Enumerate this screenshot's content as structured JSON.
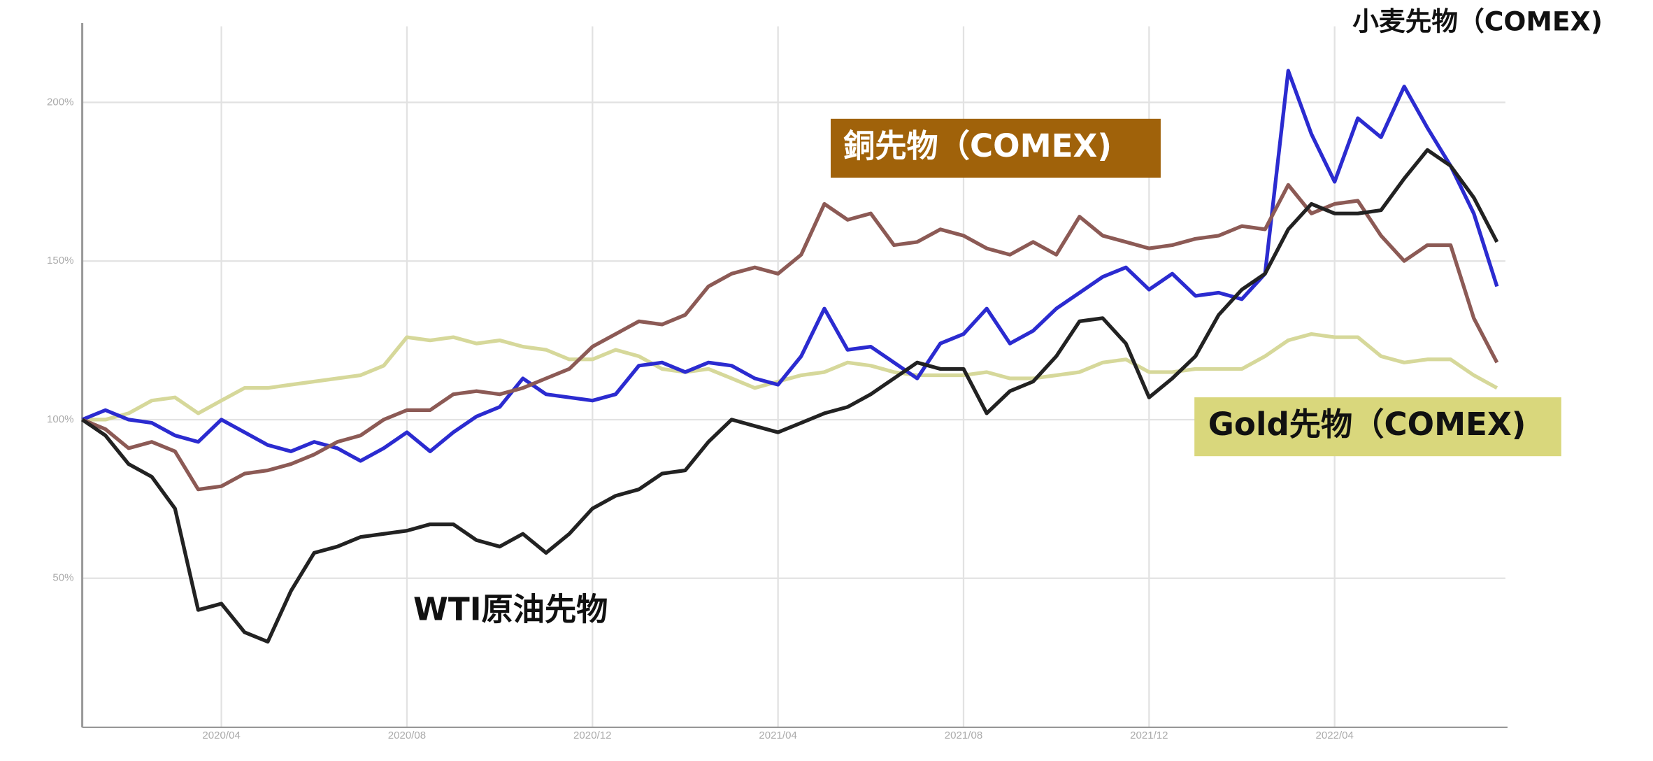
{
  "chart_data": {
    "type": "line",
    "categories": [
      null,
      null,
      null,
      null,
      null,
      null,
      "2020/04",
      null,
      null,
      null,
      null,
      null,
      null,
      null,
      "2020/08",
      null,
      null,
      null,
      null,
      null,
      null,
      null,
      "2020/12",
      null,
      null,
      null,
      null,
      null,
      null,
      null,
      "2021/04",
      null,
      null,
      null,
      null,
      null,
      null,
      null,
      "2021/08",
      null,
      null,
      null,
      null,
      null,
      null,
      null,
      "2021/12",
      null,
      null,
      null,
      null,
      null,
      null,
      null,
      "2022/04",
      null,
      null,
      null,
      null,
      null,
      null,
      null
    ],
    "ylim": [
      3,
      224
    ],
    "yticks": [
      {
        "value": 50,
        "label": "50%"
      },
      {
        "value": 100,
        "label": "100%"
      },
      {
        "value": 150,
        "label": "150%"
      },
      {
        "value": 200,
        "label": "200%"
      }
    ],
    "grid": true,
    "series": [
      {
        "name": "WTI原油先物",
        "color": "#222222",
        "values": [
          100,
          95,
          86,
          82,
          72,
          40,
          42,
          33,
          30,
          46,
          58,
          60,
          63,
          64,
          65,
          67,
          67,
          62,
          60,
          64,
          58,
          64,
          72,
          76,
          78,
          83,
          84,
          93,
          100,
          98,
          96,
          99,
          102,
          104,
          108,
          113,
          118,
          116,
          116,
          102,
          109,
          112,
          120,
          131,
          132,
          124,
          107,
          113,
          120,
          133,
          141,
          146,
          160,
          168,
          165,
          165,
          166,
          176,
          185,
          180,
          170,
          156
        ]
      },
      {
        "name": "銅先物（COMEX)",
        "color": "#8c5a55",
        "label_color": "#a0620a",
        "values": [
          100,
          97,
          91,
          93,
          90,
          78,
          79,
          83,
          84,
          86,
          89,
          93,
          95,
          100,
          103,
          103,
          108,
          109,
          108,
          110,
          113,
          116,
          123,
          127,
          131,
          130,
          133,
          142,
          146,
          148,
          146,
          152,
          168,
          163,
          165,
          155,
          156,
          160,
          158,
          154,
          152,
          156,
          152,
          164,
          158,
          156,
          154,
          155,
          157,
          158,
          161,
          160,
          174,
          165,
          168,
          169,
          158,
          150,
          155,
          155,
          132,
          118
        ]
      },
      {
        "name": "小麦先物（COMEX)",
        "color": "#2b2bd0",
        "values": [
          100,
          103,
          100,
          99,
          95,
          93,
          100,
          96,
          92,
          90,
          93,
          91,
          87,
          91,
          96,
          90,
          96,
          101,
          104,
          113,
          108,
          107,
          106,
          108,
          117,
          118,
          115,
          118,
          117,
          113,
          111,
          120,
          135,
          122,
          123,
          118,
          113,
          124,
          127,
          135,
          124,
          128,
          135,
          140,
          145,
          148,
          141,
          146,
          139,
          140,
          138,
          146,
          210,
          190,
          175,
          195,
          189,
          205,
          192,
          180,
          165,
          142
        ]
      },
      {
        "name": "Gold先物（COMEX)",
        "color": "#d6d89a",
        "label_color": "#d9d77c",
        "values": [
          100,
          100,
          102,
          106,
          107,
          102,
          106,
          110,
          110,
          111,
          112,
          113,
          114,
          117,
          126,
          125,
          126,
          124,
          125,
          123,
          122,
          119,
          119,
          122,
          120,
          116,
          115,
          116,
          113,
          110,
          112,
          114,
          115,
          118,
          117,
          115,
          114,
          114,
          114,
          115,
          113,
          113,
          114,
          115,
          118,
          119,
          115,
          115,
          116,
          116,
          116,
          120,
          125,
          127,
          126,
          126,
          120,
          118,
          119,
          119,
          114,
          110
        ]
      }
    ]
  }
}
